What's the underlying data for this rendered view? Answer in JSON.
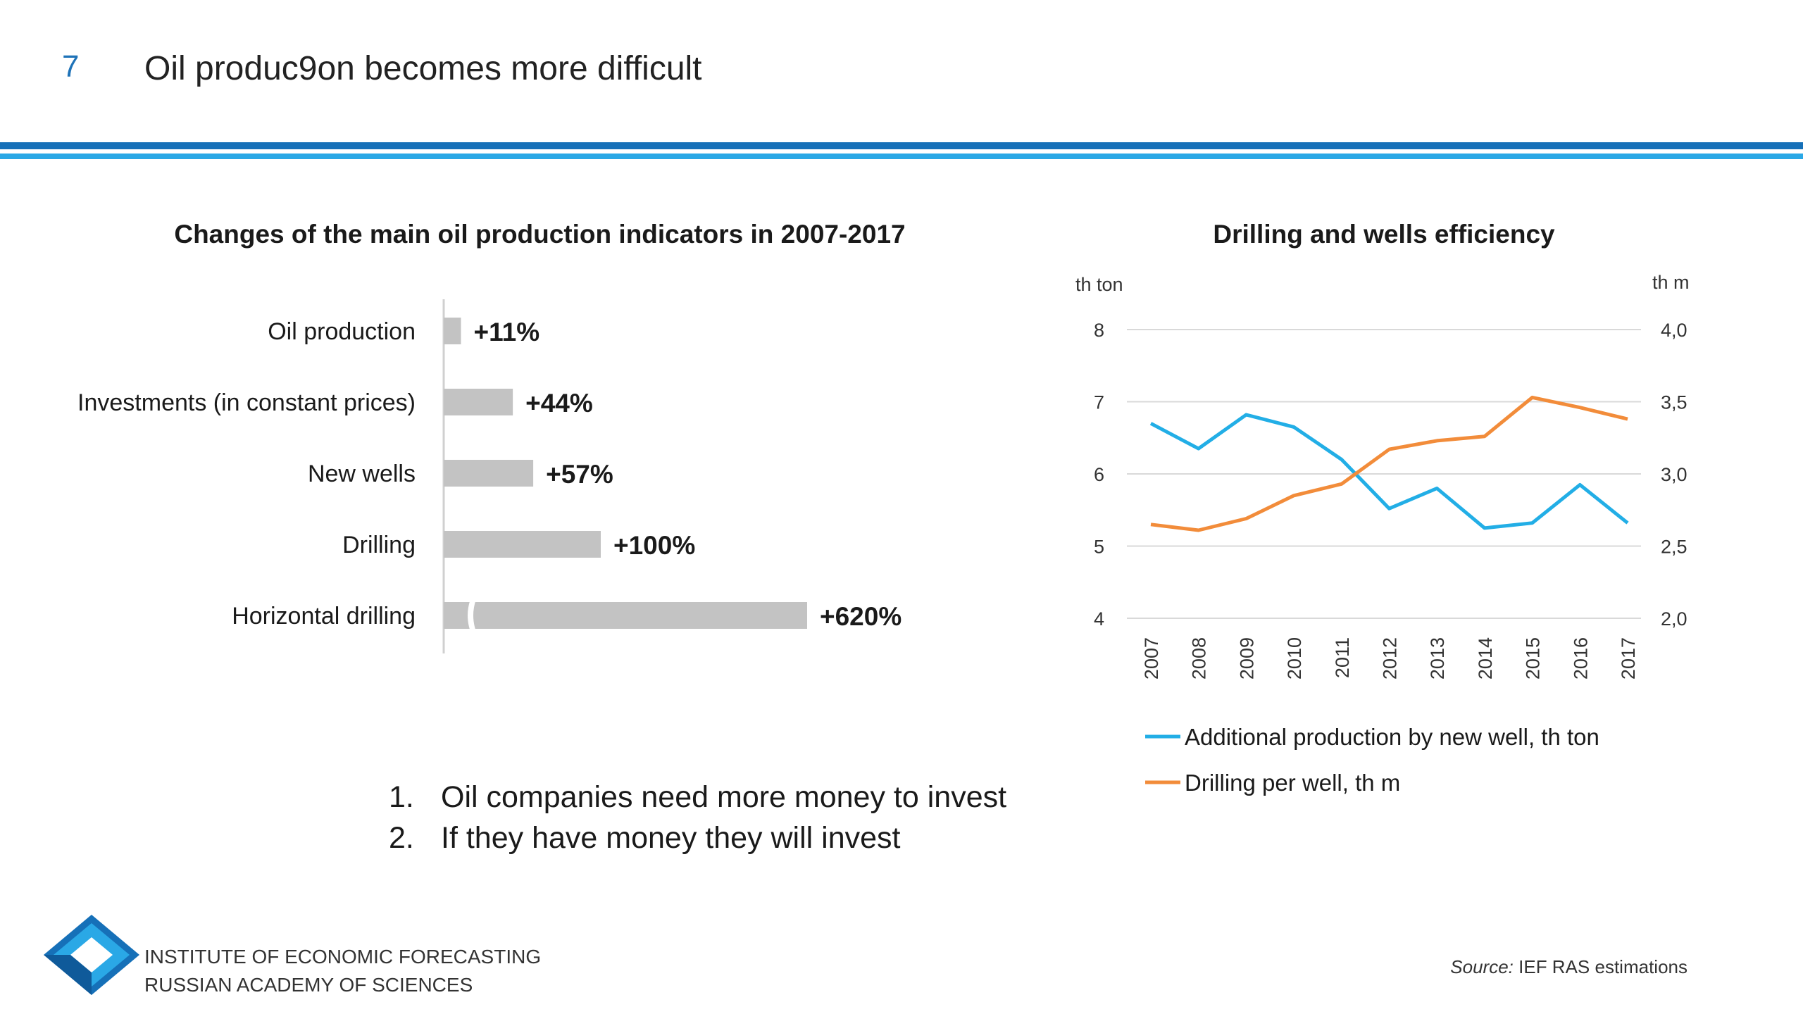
{
  "slide": {
    "number": "7",
    "title": "Oil produc9on becomes more difficult",
    "bullets": [
      {
        "num": "1.",
        "text": "Oil companies need more money to invest"
      },
      {
        "num": "2.",
        "text": "If they have money they will invest"
      }
    ],
    "institute": [
      "INSTITUTE OF ECONOMIC FORECASTING",
      "RUSSIAN ACADEMY OF SCIENCES"
    ],
    "source_label": "Source:",
    "source_text": "IEF RAS estimations"
  },
  "colors": {
    "accent_dark": "#1670b8",
    "accent_light": "#2aa8e6",
    "bar": "#c3c3c3",
    "series_blue": "#22aee6",
    "series_orange": "#f28c3a"
  },
  "chart_data": [
    {
      "type": "bar",
      "orientation": "horizontal",
      "title": "Changes of the main oil production indicators in 2007-2017",
      "categories": [
        "Oil production",
        "Investments (in constant prices)",
        "New wells",
        "Drilling",
        "Horizontal drilling"
      ],
      "values": [
        11,
        44,
        57,
        100,
        620
      ],
      "labels": [
        "+11%",
        "+44%",
        "+57%",
        "+100%",
        "+620%"
      ],
      "unit": "%",
      "axis_break_on": "Horizontal drilling"
    },
    {
      "type": "line",
      "title": "Drilling and wells efficiency",
      "x": [
        "2007",
        "2008",
        "2009",
        "2010",
        "2011",
        "2012",
        "2013",
        "2014",
        "2015",
        "2016",
        "2017"
      ],
      "y_left": {
        "label": "th ton",
        "range": [
          4,
          8
        ],
        "ticks": [
          "4",
          "5",
          "6",
          "7",
          "8"
        ]
      },
      "y_right": {
        "label": "th m",
        "range": [
          2.0,
          4.0
        ],
        "ticks": [
          "2,0",
          "2,5",
          "3,0",
          "3,5",
          "4,0"
        ]
      },
      "grid": true,
      "legend_position": "bottom",
      "series": [
        {
          "name": "Additional production by new well, th ton",
          "axis": "left",
          "color": "#22aee6",
          "values": [
            6.7,
            6.35,
            6.82,
            6.65,
            6.2,
            5.52,
            5.8,
            5.25,
            5.32,
            5.85,
            5.32
          ]
        },
        {
          "name": "Drilling per well, th m",
          "axis": "right",
          "color": "#f28c3a",
          "values": [
            2.65,
            2.61,
            2.69,
            2.85,
            2.93,
            3.17,
            3.23,
            3.26,
            3.53,
            3.46,
            3.38
          ]
        }
      ]
    }
  ]
}
